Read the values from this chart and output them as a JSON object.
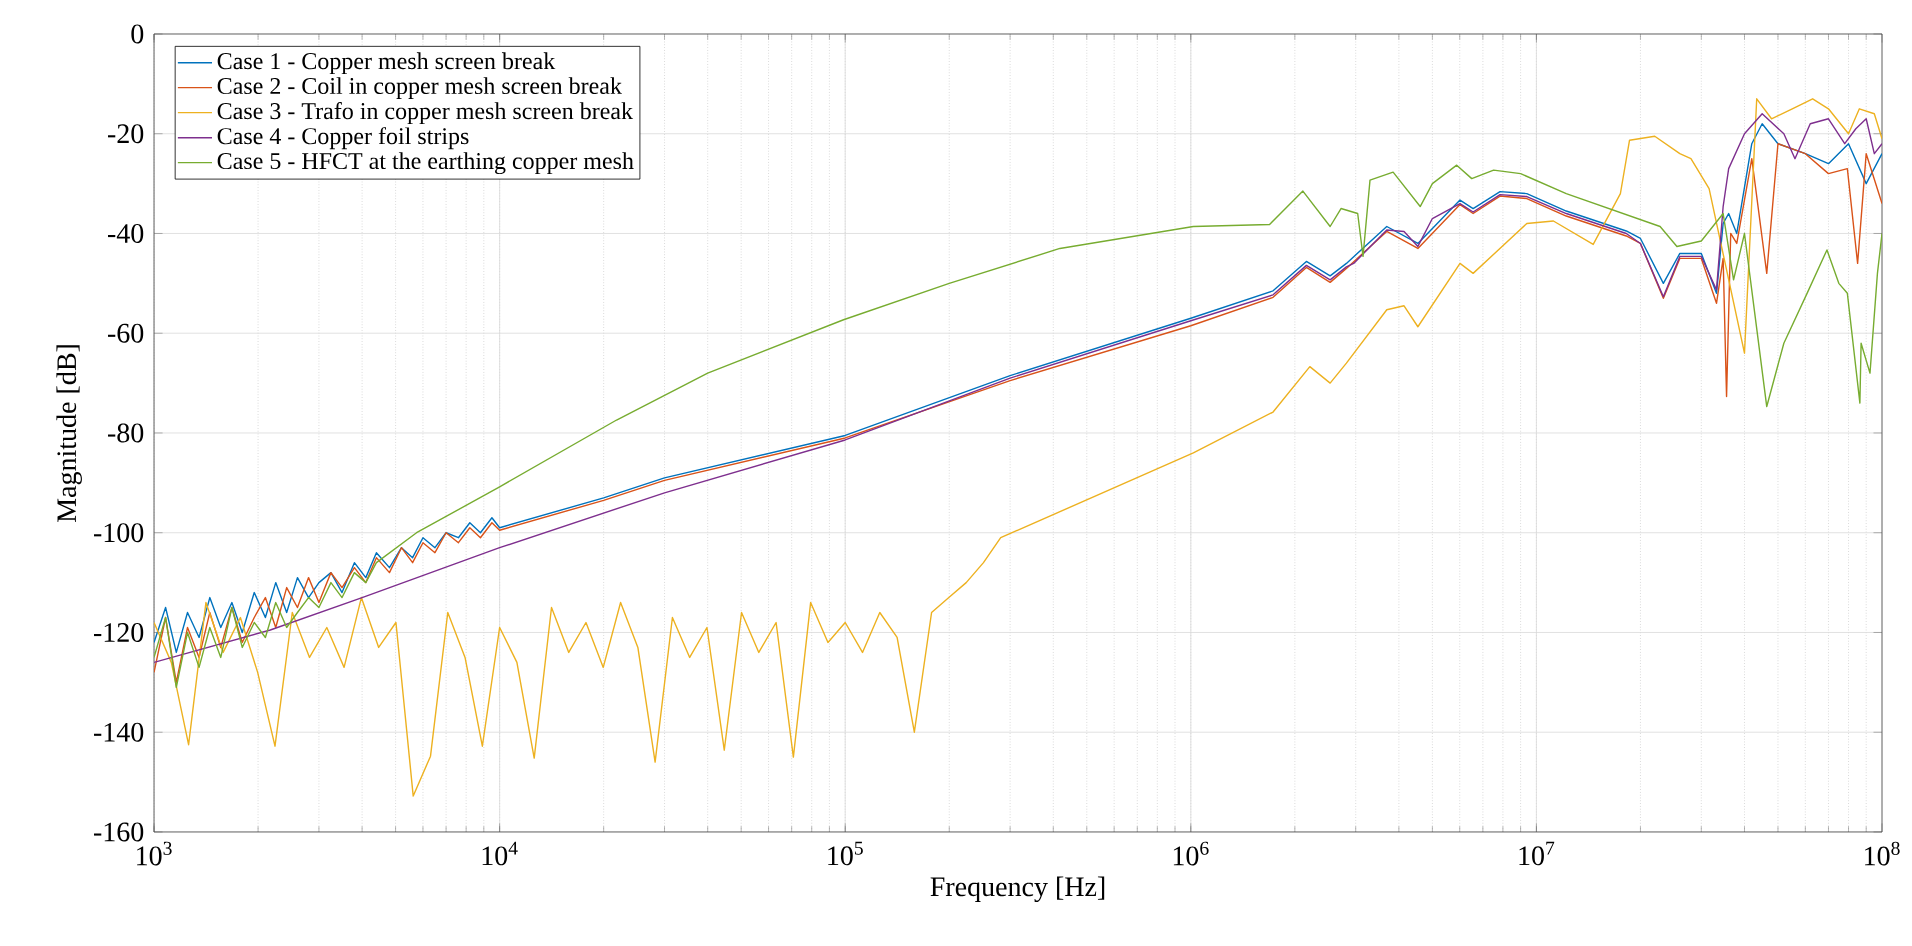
{
  "chart_data": {
    "type": "line",
    "xlabel": "Frequency [Hz]",
    "ylabel": "Magnitude [dB]",
    "log": "x",
    "xlim": [
      1000,
      100000000
    ],
    "ylim": [
      -160,
      0
    ],
    "xticks": [
      {
        "value": 1000,
        "label": "10$^{3}$"
      },
      {
        "value": 10000,
        "label": "10$^{4}$"
      },
      {
        "value": 100000,
        "label": "10$^{5}$"
      },
      {
        "value": 1000000,
        "label": "10$^{6}$"
      },
      {
        "value": 10000000,
        "label": "10$^{7}$"
      },
      {
        "value": 100000000,
        "label": "10$^{8}$"
      }
    ],
    "yticks": [
      -160,
      -140,
      -120,
      -100,
      -80,
      -60,
      -40,
      -20,
      0
    ],
    "grid": true,
    "legend": "top left",
    "line_style": "solid",
    "marker": "none",
    "series": [
      {
        "name": "Case 1 - Copper mesh screen break",
        "color": "#0072bd",
        "x": [
          1000,
          1080,
          1160,
          1250,
          1350,
          1450,
          1560,
          1680,
          1800,
          1950,
          2100,
          2250,
          2420,
          2600,
          2800,
          3000,
          3250,
          3500,
          3800,
          4100,
          4400,
          4800,
          5200,
          5600,
          6000,
          6500,
          7000,
          7600,
          8200,
          8800,
          9500,
          10000,
          20000,
          30000,
          100000,
          300000,
          1000000,
          1730000,
          2160000,
          2530000,
          2820000,
          3690000,
          4540000,
          6010000,
          6560000,
          7850000,
          9380000,
          12200000,
          18200000,
          20000000,
          23300000,
          26000000,
          30000000,
          33200000,
          34700000,
          36000000,
          38000000,
          42000000,
          45000000,
          50000000,
          60000000,
          70000000,
          80000000,
          90000000,
          100000000
        ],
        "values": [
          -122,
          -115,
          -124,
          -116,
          -121,
          -113,
          -119,
          -114,
          -120,
          -112,
          -117,
          -110,
          -116,
          -109,
          -113,
          -110,
          -108,
          -112,
          -106,
          -109,
          -104,
          -107,
          -103,
          -105,
          -101,
          -103,
          -100,
          -101,
          -98,
          -100,
          -97,
          -99,
          -93,
          -89,
          -80.5,
          -68.5,
          -57,
          -51.5,
          -45.6,
          -48.5,
          -46,
          -38.6,
          -42,
          -33.3,
          -35,
          -31.6,
          -32,
          -35.5,
          -39.5,
          -41,
          -50,
          -44,
          -44,
          -52,
          -38,
          -36,
          -40,
          -22,
          -18,
          -22,
          -24,
          -26,
          -22,
          -30,
          -24
        ]
      },
      {
        "name": "Case 2 - Coil in copper mesh screen break",
        "color": "#d95319",
        "x": [
          1000,
          1080,
          1160,
          1250,
          1350,
          1450,
          1560,
          1680,
          1800,
          1950,
          2100,
          2250,
          2420,
          2600,
          2800,
          3000,
          3250,
          3500,
          3800,
          4100,
          4400,
          4800,
          5200,
          5600,
          6000,
          6500,
          7000,
          7600,
          8200,
          8800,
          9500,
          10000,
          20000,
          30000,
          100000,
          300000,
          1000000,
          1730000,
          2160000,
          2530000,
          2820000,
          3690000,
          4540000,
          6010000,
          6560000,
          7850000,
          9380000,
          12200000,
          18200000,
          20000000,
          23300000,
          26000000,
          30000000,
          33200000,
          34700000,
          35500000,
          36500000,
          38000000,
          42000000,
          46400000,
          50000000,
          60000000,
          70000000,
          79400000,
          85000000,
          90000000,
          100000000
        ],
        "values": [
          -128,
          -117,
          -130,
          -119,
          -125,
          -116,
          -123,
          -115,
          -122,
          -117,
          -113,
          -119,
          -111,
          -115,
          -109,
          -114,
          -108,
          -111,
          -107,
          -110,
          -105,
          -108,
          -103,
          -106,
          -102,
          -104,
          -100,
          -102,
          -99,
          -101,
          -98,
          -99.5,
          -93.5,
          -89.5,
          -81,
          -69.5,
          -58.5,
          -52.8,
          -46.8,
          -49.8,
          -47,
          -39.6,
          -43,
          -34.2,
          -36,
          -32.5,
          -33,
          -36.5,
          -40.5,
          -42,
          -53,
          -45,
          -45,
          -54,
          -45,
          -72.7,
          -40,
          -42,
          -25,
          -48,
          -22,
          -24,
          -28,
          -27,
          -46,
          -24,
          -34
        ]
      },
      {
        "name": "Case 3 - Trafo in copper mesh screen break",
        "color": "#edb120",
        "x": [
          1000,
          1122,
          1259,
          1413,
          1585,
          1778,
          1995,
          2239,
          2512,
          2818,
          3162,
          3548,
          3981,
          4467,
          5012,
          5623,
          6310,
          7079,
          7943,
          8913,
          10000,
          11220,
          12590,
          14130,
          15850,
          17780,
          19950,
          22390,
          25120,
          28180,
          31620,
          35480,
          39810,
          44670,
          50120,
          56230,
          63100,
          70790,
          79430,
          89130,
          100000,
          112200,
          125900,
          141300,
          158500,
          177800,
          199500,
          223900,
          251200,
          281800,
          1017000,
          1730000,
          2210000,
          2530000,
          2820000,
          3690000,
          4140000,
          4540000,
          6010000,
          6560000,
          9380000,
          11200000,
          14600000,
          17500000,
          18600000,
          22000000,
          26000000,
          28000000,
          31600000,
          40000000,
          43400000,
          47900000,
          55000000,
          63000000,
          70000000,
          80000000,
          86000000,
          95000000,
          100000000
        ],
        "values": [
          -118,
          -126,
          -142.5,
          -114,
          -124,
          -117,
          -128,
          -142.8,
          -116,
          -125,
          -119,
          -127,
          -113,
          -123,
          -118,
          -152.8,
          -144.8,
          -116,
          -125,
          -142.8,
          -119,
          -126,
          -145.2,
          -115,
          -124,
          -118,
          -127,
          -114,
          -123,
          -146,
          -117,
          -125,
          -119,
          -143.6,
          -116,
          -124,
          -118,
          -145,
          -114,
          -122,
          -118,
          -124,
          -116,
          -121,
          -140,
          -116,
          -113,
          -110,
          -106,
          -101,
          -84,
          -75.8,
          -66.7,
          -70,
          -66,
          -55.3,
          -54.5,
          -58.7,
          -46,
          -48,
          -38,
          -37.5,
          -42.2,
          -32,
          -21.3,
          -20.5,
          -24,
          -25,
          -31,
          -64,
          -13,
          -17,
          -15,
          -13,
          -15,
          -20,
          -15,
          -16,
          -21
        ]
      },
      {
        "name": "Case 4 - Copper foil strips",
        "color": "#7e2f8e",
        "x": [
          1000,
          2170,
          4000,
          10000,
          30000,
          100000,
          300000,
          1000000,
          1730000,
          2160000,
          2530000,
          2820000,
          2960000,
          3690000,
          4140000,
          4540000,
          5000000,
          6010000,
          6560000,
          7850000,
          9380000,
          12200000,
          18200000,
          20000000,
          23300000,
          26000000,
          30000000,
          33200000,
          34700000,
          36000000,
          40000000,
          45000000,
          52000000,
          56000000,
          62000000,
          70000000,
          78000000,
          84000000,
          90000000,
          95000000,
          100000000
        ],
        "values": [
          -126,
          -119.5,
          -113,
          -103,
          -92,
          -81.4,
          -69,
          -57.5,
          -52.3,
          -46.4,
          -49.3,
          -46.7,
          -46,
          -39.3,
          -39.6,
          -42.6,
          -37,
          -34,
          -35.7,
          -32.2,
          -32.6,
          -36,
          -40,
          -42,
          -52.7,
          -44.6,
          -44.6,
          -51.3,
          -34.6,
          -27,
          -20,
          -16,
          -20,
          -25,
          -18,
          -17,
          -22,
          -19,
          -17,
          -24,
          -22
        ]
      },
      {
        "name": "Case 5 - HFCT at the earthing copper mesh",
        "color": "#77ac30",
        "x": [
          1000,
          1080,
          1160,
          1250,
          1350,
          1450,
          1560,
          1680,
          1800,
          1950,
          2100,
          2250,
          2420,
          2600,
          2800,
          3000,
          3250,
          3500,
          3800,
          4100,
          4400,
          5750,
          10000,
          21800,
          40000,
          98900,
          200000,
          418000,
          1017000,
          1690000,
          2110000,
          2530000,
          2720000,
          3040000,
          3150000,
          3300000,
          3850000,
          4610000,
          5000000,
          5880000,
          6500000,
          7520000,
          9000000,
          12200000,
          22800000,
          25500000,
          30000000,
          34700000,
          37200000,
          40000000,
          46400000,
          52000000,
          60700000,
          69300000,
          75000000,
          79400000,
          86300000,
          87000000,
          92300000,
          97000000,
          100000000
        ],
        "values": [
          -125,
          -117,
          -131,
          -120,
          -127,
          -119,
          -125,
          -115,
          -123,
          -118,
          -121,
          -114,
          -119,
          -116,
          -113,
          -115,
          -110,
          -113,
          -108,
          -110,
          -106,
          -100,
          -90.8,
          -77.4,
          -68,
          -57.3,
          -50,
          -43,
          -38.6,
          -38.2,
          -31.5,
          -38.6,
          -35,
          -36,
          -44.6,
          -29.3,
          -27.7,
          -34.6,
          -30,
          -26.3,
          -29,
          -27.3,
          -28,
          -32,
          -38.6,
          -42.6,
          -41.5,
          -36,
          -49.3,
          -40,
          -74.7,
          -62,
          -52,
          -43.3,
          -50,
          -52,
          -74,
          -62,
          -68,
          -48,
          -40
        ]
      }
    ]
  }
}
